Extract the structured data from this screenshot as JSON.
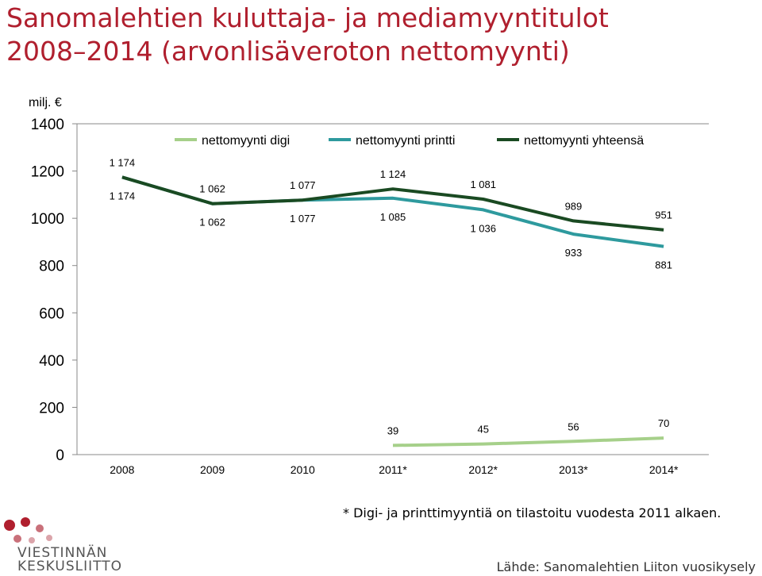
{
  "title_line1": "Sanomalehtien kuluttaja- ja mediamyyntitulot",
  "title_line2": "2008–2014 (arvonlisäveroton nettomyynti)",
  "footnote": "* Digi- ja printtimyyntiä on tilastoitu vuodesta 2011 alkaen.",
  "source": "Lähde: Sanomalehtien Liiton vuosikysely",
  "logo": {
    "line1": "VIESTINNÄN",
    "line2": "KESKUSLIITTO"
  },
  "colors": {
    "title": "#b01f2e",
    "digi": "#a6d08a",
    "printti": "#2e9a9e",
    "yhteensa": "#1a4a22",
    "logo": "#b01f2e"
  },
  "chart_data": {
    "type": "line",
    "ylabel": "milj. €",
    "ylim": [
      0,
      1400
    ],
    "yticks": [
      "0",
      "200",
      "400",
      "600",
      "800",
      "1000",
      "1200",
      "1400"
    ],
    "categories": [
      "2008",
      "2009",
      "2010",
      "2011*",
      "2012*",
      "2013*",
      "2014*"
    ],
    "legend_position": "top",
    "grid": false,
    "series": [
      {
        "name": "nettomyynti digi",
        "values": [
          null,
          null,
          null,
          39,
          45,
          56,
          70
        ],
        "labels": [
          "",
          "",
          "",
          "39",
          "45",
          "56",
          "70"
        ]
      },
      {
        "name": "nettomyynti printti",
        "values": [
          1174,
          1062,
          1077,
          1085,
          1036,
          933,
          881
        ],
        "labels": [
          "1 174",
          "1 062",
          "1 077",
          "1 085",
          "1 036",
          "933",
          "881"
        ]
      },
      {
        "name": "nettomyynti yhteensä",
        "values": [
          1174,
          1062,
          1077,
          1124,
          1081,
          989,
          951
        ],
        "labels": [
          "1 174",
          "1 062",
          "1 077",
          "1 124",
          "1 081",
          "989",
          "951"
        ]
      }
    ]
  }
}
